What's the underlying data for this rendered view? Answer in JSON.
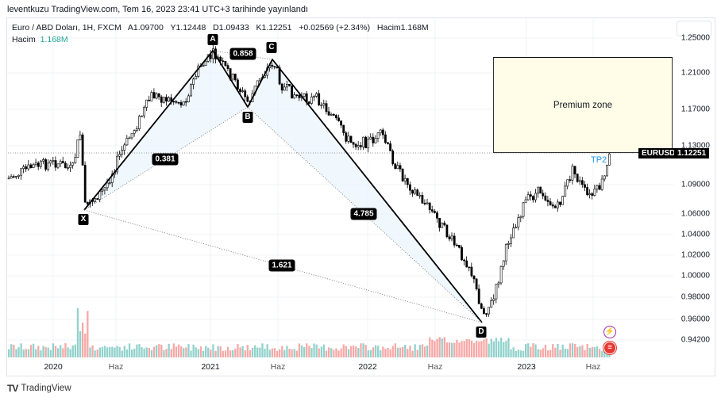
{
  "published": "leventkuzu TradingView.com, Tem 16, 2023 23:41 UTC+3 tarihinde yayınlandı",
  "legend": {
    "symbol": "Euro / ABD Doları, 1H, FXCM",
    "open": "A1.09700",
    "high": "Y1.12448",
    "low": "D1.09433",
    "close": "K1.12251",
    "change": "+0.02569 (+2.34%)",
    "volume": "Hacim1.168M",
    "vol_label": "Hacim",
    "vol_value": "1.168M"
  },
  "price_axis": [
    "1.25000",
    "1.21000",
    "1.17000",
    "1.13000",
    "1.09000",
    "1.06000",
    "1.04000",
    "1.02000",
    "1.00000",
    "0.98000",
    "0.96000",
    "0.94200"
  ],
  "time_axis": [
    "2020",
    "Haz",
    "2021",
    "Haz",
    "2022",
    "Haz",
    "2023",
    "Haz"
  ],
  "pattern": {
    "points": [
      "X",
      "A",
      "B",
      "C",
      "D"
    ],
    "ratios": [
      "0.858",
      "0.381",
      "4.785",
      "1.621"
    ]
  },
  "zone_label": "Premium zone",
  "target_label": "TP2",
  "symbol_tag": "EURUSD",
  "last_price": "1.12251",
  "brand": "TradingView",
  "colors": {
    "up": "#26a69a",
    "down": "#ef5350",
    "zone": "#fffde7",
    "target": "#2196f3"
  }
}
